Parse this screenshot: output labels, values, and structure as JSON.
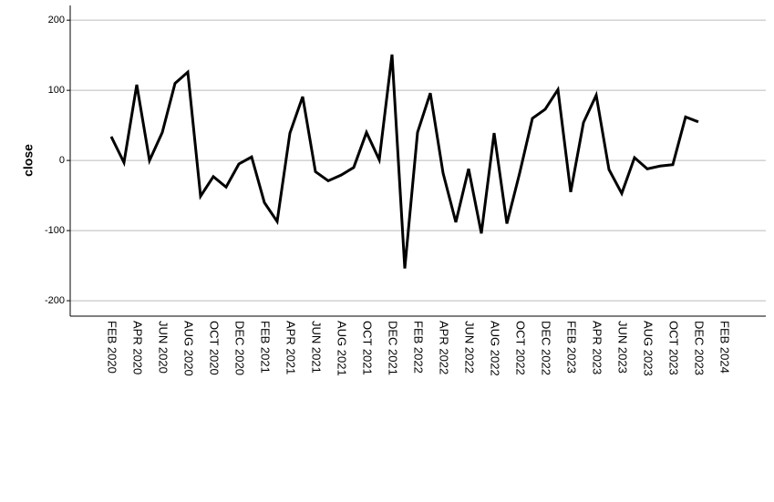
{
  "chart_data": {
    "type": "line",
    "y_label": "close",
    "categories": [
      "FEB 2020",
      null,
      "APR 2020",
      null,
      "JUN 2020",
      null,
      "AUG 2020",
      null,
      "OCT 2020",
      null,
      "DEC 2020",
      null,
      "FEB 2021",
      null,
      "APR 2021",
      null,
      "JUN 2021",
      null,
      "AUG 2021",
      null,
      "OCT 2021",
      null,
      "DEC 2021",
      null,
      "FEB 2022",
      null,
      "APR 2022",
      null,
      "JUN 2022",
      null,
      "AUG 2022",
      null,
      "OCT 2022",
      null,
      "DEC 2022",
      null,
      "FEB 2023",
      null,
      "APR 2023",
      null,
      "JUN 2023",
      null,
      "AUG 2023",
      null,
      "OCT 2023",
      null,
      "DEC 2023",
      null,
      "FEB 2024"
    ],
    "series": [
      {
        "name": "close",
        "color": "#000000",
        "values": [
          34,
          -3,
          108,
          0,
          40,
          110,
          126,
          -51,
          -23,
          -38,
          -5,
          5,
          -60,
          -87,
          39,
          91,
          -16,
          -29,
          -21,
          -10,
          40,
          1,
          151,
          -154,
          40,
          96,
          -18,
          -88,
          -12,
          -104,
          39,
          -90,
          -18,
          60,
          73,
          101,
          -45,
          54,
          93,
          -13,
          -47,
          4,
          -12,
          -8,
          -6,
          62,
          55,
          null,
          null
        ]
      }
    ],
    "ylim": [
      -222,
      221
    ],
    "yticks": [
      -200,
      -100,
      0,
      100,
      200
    ],
    "grid": true
  }
}
